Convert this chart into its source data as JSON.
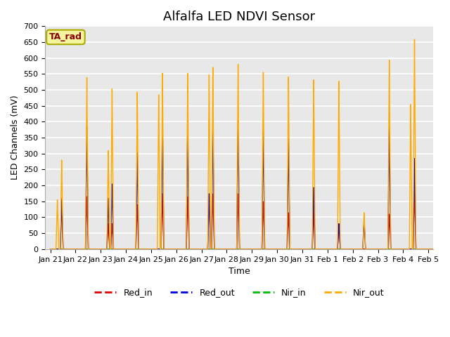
{
  "title": "Alfalfa LED NDVI Sensor",
  "xlabel": "Time",
  "ylabel": "LED Channels (mV)",
  "ylim": [
    0,
    700
  ],
  "fig_facecolor": "#ffffff",
  "axes_bg_color": "#e8e8e8",
  "grid_color": "#ffffff",
  "colors": {
    "Red_in": "#dd0000",
    "Red_out": "#0000dd",
    "Nir_in": "#00bb00",
    "Nir_out": "#ffaa00"
  },
  "ta_rad_label": "TA_rad",
  "x_ticks": [
    "Jan 21",
    "Jan 22",
    "Jan 23",
    "Jan 24",
    "Jan 25",
    "Jan 26",
    "Jan 27",
    "Jan 28",
    "Jan 29",
    "Jan 30",
    "Jan 31",
    "Feb 1",
    "Feb 2",
    "Feb 3",
    "Feb 4",
    "Feb 5"
  ],
  "title_fontsize": 13,
  "label_fontsize": 9,
  "tick_fontsize": 8,
  "legend_fontsize": 9,
  "nir_peaks": [
    280,
    540,
    505,
    495,
    555,
    555,
    575,
    585,
    560,
    545,
    535,
    530,
    115,
    595,
    660,
    0
  ],
  "red_peaks": [
    160,
    165,
    80,
    140,
    175,
    165,
    175,
    175,
    150,
    115,
    120,
    80,
    0,
    110,
    180,
    0
  ],
  "blue_peaks": [
    155,
    385,
    205,
    305,
    395,
    390,
    400,
    405,
    375,
    350,
    195,
    80,
    90,
    380,
    285,
    0
  ],
  "nir_second": [
    155,
    0,
    310,
    0,
    487,
    0,
    551,
    0,
    0,
    0,
    0,
    0,
    0,
    0,
    455,
    0
  ],
  "red_second": [
    0,
    0,
    80,
    0,
    0,
    0,
    175,
    0,
    0,
    0,
    0,
    0,
    0,
    0,
    0,
    0
  ],
  "blue_second": [
    0,
    0,
    160,
    0,
    0,
    0,
    175,
    0,
    0,
    0,
    0,
    0,
    0,
    0,
    0,
    0
  ]
}
